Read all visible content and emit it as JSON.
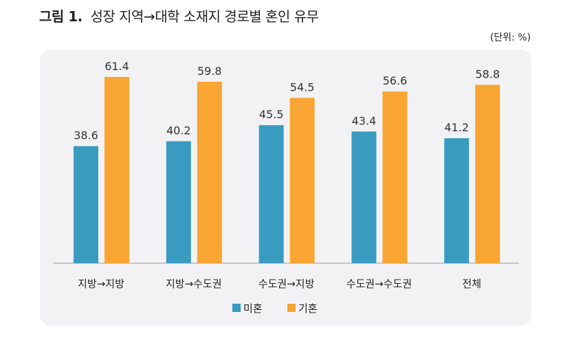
{
  "chart_data": {
    "type": "bar",
    "title_prefix": "그림 1.",
    "title": "성장 지역→대학 소재지 경로별 혼인 유무",
    "unit": "(단위: %)",
    "categories": [
      "지방→지방",
      "지방→수도권",
      "수도권→지방",
      "수도권→수도권",
      "전체"
    ],
    "series": [
      {
        "name": "미혼",
        "values": [
          38.6,
          40.2,
          45.5,
          43.4,
          41.2
        ],
        "color": "#3a9bc1"
      },
      {
        "name": "기혼",
        "values": [
          61.4,
          59.8,
          54.5,
          56.6,
          58.8
        ],
        "color": "#f9a533"
      }
    ],
    "ylim": [
      0,
      70
    ],
    "grid": false,
    "legend": "bottom"
  }
}
